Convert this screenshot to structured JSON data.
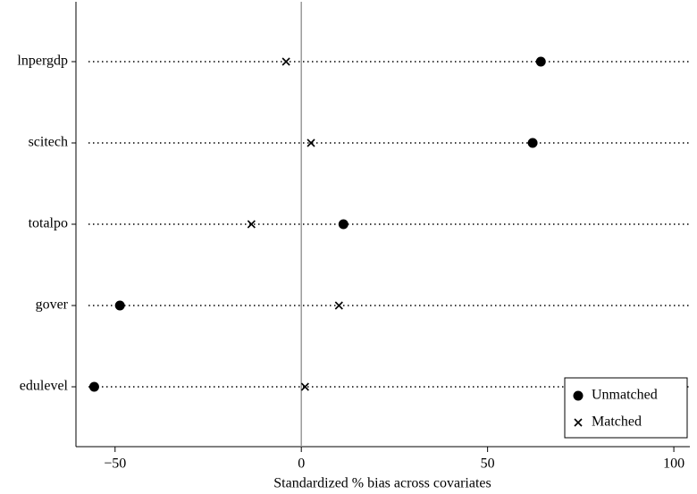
{
  "chart_data": {
    "type": "dot",
    "x_label": "Standardized % bias across covariates",
    "categories": [
      "lnpergdp",
      "scitech",
      "totalpo",
      "gover",
      "edulevel"
    ],
    "series": [
      {
        "name": "Unmatched",
        "marker": "circle",
        "color": "#000000",
        "values": [
          64.3,
          62.1,
          11.3,
          -48.7,
          -55.6
        ]
      },
      {
        "name": "Matched",
        "marker": "cross",
        "color": "#000000",
        "values": [
          -4.1,
          2.6,
          -13.4,
          10.1,
          1.0
        ]
      }
    ],
    "xlim": [
      -60.5,
      104.3
    ],
    "xticks": [
      {
        "value": -50,
        "label": "−50"
      },
      0,
      50,
      100
    ],
    "reference_line": 0,
    "legend": "lower right"
  }
}
